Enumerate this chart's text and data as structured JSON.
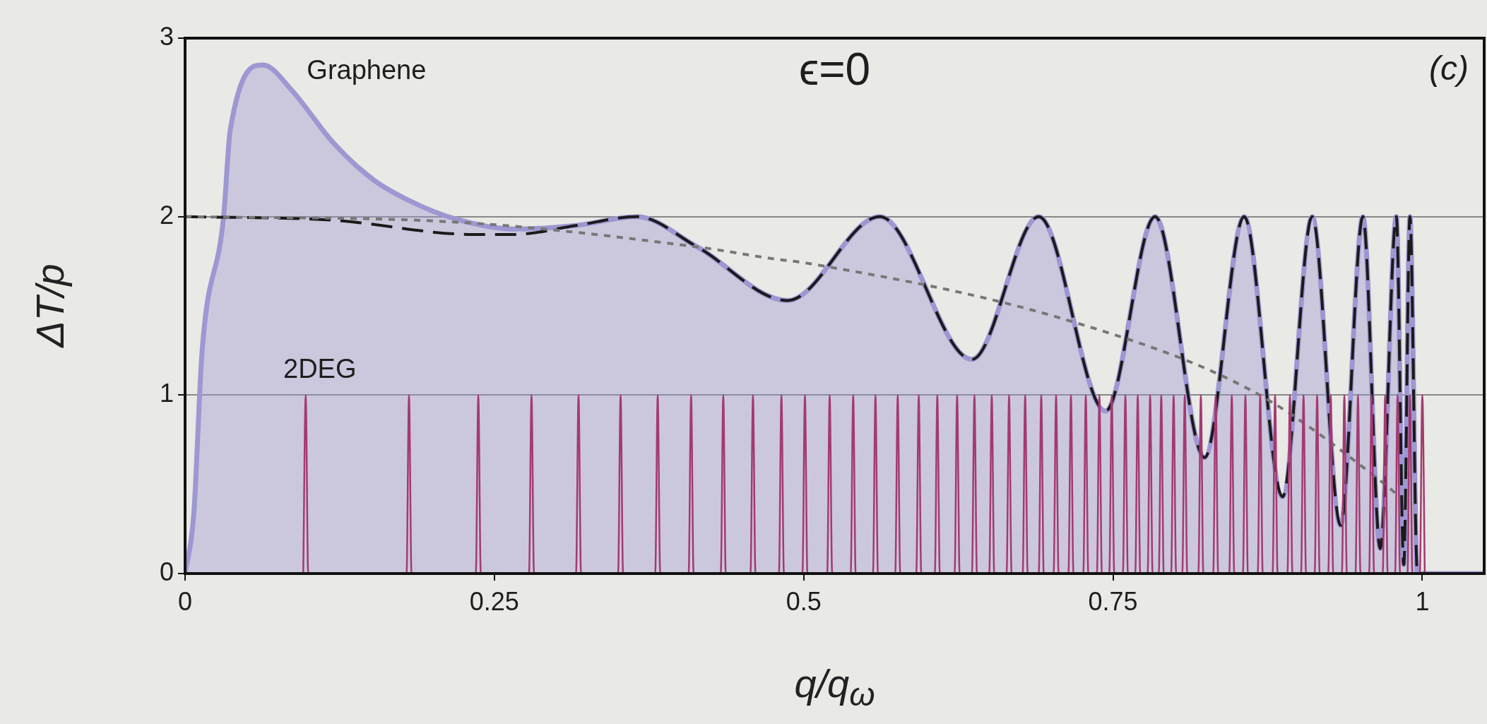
{
  "chart_data": {
    "type": "line",
    "title": "ϵ=0",
    "xlabel": "q/q$_{ω}$",
    "ylabel": "ΔT/p",
    "annotations": [
      "(c)"
    ],
    "xlim": [
      0,
      1.05
    ],
    "ylim": [
      0,
      3
    ],
    "xticks": [
      0,
      0.25,
      0.5,
      0.75,
      1
    ],
    "yticks": [
      0,
      1,
      2,
      3
    ],
    "grid": "y",
    "legend": false,
    "marker": "none",
    "series": [
      {
        "name": "Graphene",
        "type": "area",
        "color": "#9d97d2",
        "line_style": "solid",
        "x": [
          0,
          0.007,
          0.0137,
          0.031,
          0.0366,
          0.063,
          0.086,
          0.119,
          0.1515,
          0.184,
          0.217,
          0.266,
          0.316,
          0.365,
          0.414,
          0.487,
          0.5615,
          0.636,
          0.69,
          0.744,
          0.784,
          0.824,
          0.856,
          0.887,
          0.911,
          0.934,
          0.952,
          0.966,
          0.979,
          0.985,
          0.99,
          0.996,
          1.05
        ],
        "values": [
          0,
          0.33,
          1.24,
          1.99,
          2.49,
          2.85,
          2.71,
          2.42,
          2.21,
          2.08,
          1.99,
          1.93,
          1.95,
          2,
          1.83,
          1.53,
          2,
          1.2,
          2,
          0.91,
          2,
          0.65,
          2,
          0.43,
          2,
          0.27,
          2,
          0.14,
          2,
          0.05,
          2,
          0,
          0
        ]
      },
      {
        "type": "line",
        "color": "#1a1a1a",
        "line_style": "dashed",
        "x": [
          0,
          0.119,
          0.233,
          0.266,
          0.316,
          0.365,
          0.414,
          0.487,
          0.5615,
          0.636,
          0.69,
          0.744,
          0.784,
          0.824,
          0.856,
          0.887,
          0.911,
          0.934,
          0.952,
          0.966,
          0.979,
          0.985,
          0.99,
          0.996,
          1.05
        ],
        "values": [
          2,
          1.98,
          1.9,
          1.9,
          1.95,
          2,
          1.83,
          1.53,
          2,
          1.2,
          2,
          0.91,
          2,
          0.65,
          2,
          0.43,
          2,
          0.27,
          2,
          0.14,
          2,
          0.05,
          2,
          0,
          0
        ]
      },
      {
        "type": "line",
        "color": "#777777",
        "line_style": "dotted",
        "x": [
          0,
          0.217,
          0.414,
          0.479,
          0.502,
          0.713,
          0.866,
          0.968,
          0.98
        ],
        "values": [
          2,
          1.97,
          1.83,
          1.76,
          1.74,
          1.42,
          1.01,
          0.51,
          0.44
        ]
      },
      {
        "name": "2DEG",
        "type": "line",
        "color": "#a33a70",
        "line_style": "solid",
        "x": [
          0.0955,
          0.0975,
          0.0995,
          0.179,
          0.181,
          0.183,
          0.235,
          0.237,
          0.239,
          0.278,
          0.28,
          0.282,
          0.316,
          0.318,
          0.32,
          0.35,
          0.352,
          0.354,
          0.38,
          0.382,
          0.384,
          0.407,
          0.409,
          0.411,
          0.433,
          0.435,
          0.437,
          0.457,
          0.459,
          0.461,
          0.48,
          0.482,
          0.484,
          0.499,
          0.501,
          0.503,
          0.519,
          0.521,
          0.523,
          0.538,
          0.54,
          0.542,
          0.556,
          0.558,
          0.56,
          0.574,
          0.576,
          0.578,
          0.591,
          0.593,
          0.595,
          0.606,
          0.608,
          0.61,
          0.622,
          0.624,
          0.626,
          0.636,
          0.638,
          0.64,
          0.65,
          0.652,
          0.654,
          0.664,
          0.666,
          0.668,
          0.677,
          0.679,
          0.681,
          0.69,
          0.692,
          0.694,
          0.702,
          0.704,
          0.706,
          0.714,
          0.716,
          0.718,
          0.726,
          0.728,
          0.73,
          0.737,
          0.739,
          0.741,
          0.747,
          0.749,
          0.751,
          0.758,
          0.76,
          0.762,
          0.768,
          0.77,
          0.772,
          0.778,
          0.78,
          0.782,
          0.787,
          0.789,
          0.791,
          0.797,
          0.799,
          0.801,
          0.806,
          0.808,
          0.81,
          0.819,
          0.821,
          0.823,
          0.831,
          0.833,
          0.835,
          0.844,
          0.846,
          0.848,
          0.855,
          0.857,
          0.859,
          0.867,
          0.869,
          0.871,
          0.879,
          0.881,
          0.883,
          0.891,
          0.893,
          0.895,
          0.902,
          0.904,
          0.906,
          0.913,
          0.915,
          0.917,
          0.924,
          0.926,
          0.928,
          0.935,
          0.937,
          0.939,
          0.946,
          0.948,
          0.95,
          0.957,
          0.959,
          0.961,
          0.968,
          0.97,
          0.972,
          0.978,
          0.98,
          0.982,
          0.988,
          0.99,
          0.992,
          0.998,
          1,
          1.002
        ],
        "values": [
          0,
          1,
          0,
          0,
          1,
          0,
          0,
          1,
          0,
          0,
          1,
          0,
          0,
          1,
          0,
          0,
          1,
          0,
          0,
          1,
          0,
          0,
          1,
          0,
          0,
          1,
          0,
          0,
          1,
          0,
          0,
          1,
          0,
          0,
          1,
          0,
          0,
          1,
          0,
          0,
          1,
          0,
          0,
          1,
          0,
          0,
          1,
          0,
          0,
          1,
          0,
          0,
          1,
          0,
          0,
          1,
          0,
          0,
          1,
          0,
          0,
          1,
          0,
          0,
          1,
          0,
          0,
          1,
          0,
          0,
          1,
          0,
          0,
          1,
          0,
          0,
          1,
          0,
          0,
          1,
          0,
          0,
          1,
          0,
          0,
          1,
          0,
          0,
          1,
          0,
          0,
          1,
          0,
          0,
          1,
          0,
          0,
          1,
          0,
          0,
          1,
          0,
          0,
          1,
          0,
          0,
          1,
          0,
          0,
          1,
          0,
          0,
          1,
          0,
          0,
          1,
          0,
          0,
          1,
          0,
          0,
          1,
          0,
          0,
          1,
          0,
          0,
          1,
          0,
          0,
          1,
          0,
          0,
          1,
          0,
          0,
          1,
          0,
          0,
          1,
          0,
          0,
          1,
          0,
          0,
          1,
          0,
          0,
          1,
          0,
          0,
          1,
          0,
          0,
          1,
          0
        ]
      }
    ]
  }
}
